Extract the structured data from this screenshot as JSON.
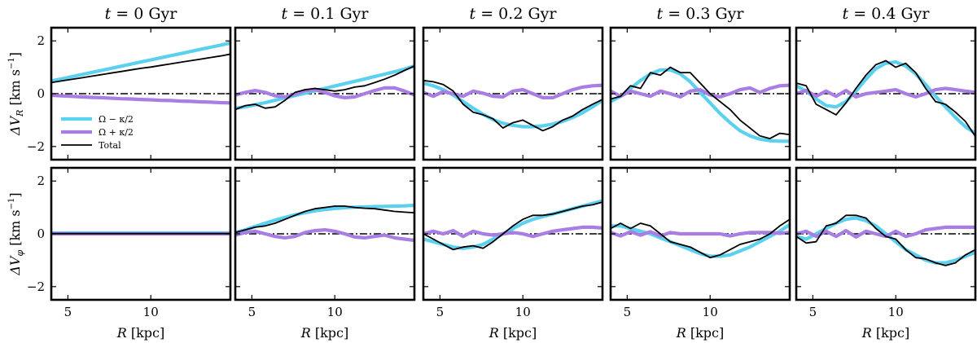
{
  "chart_data": {
    "type": "line",
    "layout": "2 rows x 5 columns, shared axes",
    "columns": [
      "t = 0 Gyr",
      "t = 0.1 Gyr",
      "t = 0.2 Gyr",
      "t = 0.3 Gyr",
      "t = 0.4 Gyr"
    ],
    "title_parts": {
      "prefix": "t",
      "equals": " = ",
      "unit": " Gyr",
      "times": [
        "0",
        "0.1",
        "0.2",
        "0.3",
        "0.4"
      ]
    },
    "xlabel": {
      "var": "R",
      "unit": " [kpc]"
    },
    "ylabels": [
      {
        "main": "ΔV",
        "sub": "R",
        "unit": " [km s",
        "exp": "−1",
        "close": "]"
      },
      {
        "main": "ΔV",
        "sub": "φ",
        "unit": " [km s",
        "exp": "−1",
        "close": "]"
      }
    ],
    "xlim": [
      4,
      14.8
    ],
    "ylim": [
      -2.5,
      2.5
    ],
    "xticks": [
      5,
      10
    ],
    "xtick_labels": [
      "5",
      "10"
    ],
    "yticks": [
      -2,
      0,
      2
    ],
    "ytick_labels": [
      "−2",
      "0",
      "2"
    ],
    "legend": {
      "location": "lower-left of first panel",
      "entries": [
        {
          "label": "Ω − κ/2",
          "color": "#5cd0ef"
        },
        {
          "label": "Ω + κ/2",
          "color": "#a87de4"
        },
        {
          "label": "Total",
          "color": "#000000"
        }
      ]
    },
    "series_colors": {
      "omega_minus": "#5cd0ef",
      "omega_plus": "#a87de4",
      "total": "#000000"
    },
    "x": [
      4.0,
      4.6,
      5.2,
      5.8,
      6.4,
      7.0,
      7.6,
      8.2,
      8.8,
      9.4,
      10.0,
      10.6,
      11.2,
      11.8,
      12.4,
      13.0,
      13.6,
      14.2,
      14.8
    ],
    "panels": [
      {
        "row": 0,
        "col": 0,
        "omega_minus": [
          0.48,
          0.56,
          0.64,
          0.72,
          0.8,
          0.88,
          0.96,
          1.04,
          1.12,
          1.2,
          1.28,
          1.36,
          1.44,
          1.52,
          1.6,
          1.68,
          1.76,
          1.84,
          1.92
        ],
        "omega_plus": [
          -0.06,
          -0.08,
          -0.1,
          -0.12,
          -0.14,
          -0.15,
          -0.17,
          -0.19,
          -0.2,
          -0.22,
          -0.23,
          -0.25,
          -0.26,
          -0.28,
          -0.29,
          -0.31,
          -0.32,
          -0.34,
          -0.35
        ],
        "total": [
          0.42,
          0.48,
          0.54,
          0.6,
          0.66,
          0.72,
          0.78,
          0.84,
          0.9,
          0.96,
          1.01,
          1.07,
          1.13,
          1.19,
          1.25,
          1.31,
          1.37,
          1.43,
          1.5
        ]
      },
      {
        "row": 0,
        "col": 1,
        "omega_minus": [
          -0.55,
          -0.5,
          -0.42,
          -0.34,
          -0.25,
          -0.16,
          -0.07,
          0.02,
          0.11,
          0.2,
          0.29,
          0.38,
          0.47,
          0.56,
          0.65,
          0.74,
          0.83,
          0.93,
          1.05
        ],
        "omega_plus": [
          -0.05,
          0.05,
          0.12,
          0.05,
          -0.08,
          -0.12,
          -0.02,
          0.12,
          0.15,
          0.05,
          -0.08,
          -0.15,
          -0.12,
          0.0,
          0.12,
          0.22,
          0.22,
          0.1,
          -0.05
        ],
        "total": [
          -0.6,
          -0.45,
          -0.4,
          -0.55,
          -0.5,
          -0.25,
          0.05,
          0.15,
          0.2,
          0.15,
          0.1,
          0.15,
          0.25,
          0.3,
          0.42,
          0.55,
          0.7,
          0.88,
          1.05
        ]
      },
      {
        "row": 0,
        "col": 2,
        "omega_minus": [
          0.4,
          0.3,
          0.15,
          -0.05,
          -0.3,
          -0.55,
          -0.78,
          -0.98,
          -1.12,
          -1.2,
          -1.25,
          -1.25,
          -1.22,
          -1.15,
          -1.05,
          -0.9,
          -0.72,
          -0.5,
          -0.25
        ],
        "omega_plus": [
          0.05,
          -0.1,
          0.08,
          0.0,
          -0.1,
          0.1,
          0.02,
          -0.1,
          -0.12,
          0.1,
          0.15,
          0.0,
          -0.15,
          -0.15,
          0.0,
          0.15,
          0.25,
          0.3,
          0.32
        ],
        "total": [
          0.5,
          0.45,
          0.35,
          0.1,
          -0.4,
          -0.7,
          -0.8,
          -0.95,
          -1.3,
          -1.1,
          -1.0,
          -1.2,
          -1.4,
          -1.25,
          -1.0,
          -0.85,
          -0.6,
          -0.4,
          -0.22
        ]
      },
      {
        "row": 0,
        "col": 3,
        "omega_minus": [
          -0.3,
          -0.1,
          0.2,
          0.5,
          0.75,
          0.9,
          0.9,
          0.75,
          0.45,
          0.05,
          -0.35,
          -0.75,
          -1.1,
          -1.4,
          -1.6,
          -1.72,
          -1.78,
          -1.8,
          -1.8
        ],
        "omega_plus": [
          0.1,
          -0.1,
          0.1,
          0.0,
          -0.1,
          0.1,
          0.0,
          -0.12,
          0.1,
          0.15,
          -0.05,
          -0.12,
          0.0,
          0.15,
          0.22,
          0.05,
          0.2,
          0.3,
          0.32
        ],
        "total": [
          -0.2,
          -0.1,
          0.3,
          0.2,
          0.8,
          0.7,
          1.0,
          0.8,
          0.8,
          0.4,
          0.0,
          -0.3,
          -0.6,
          -1.0,
          -1.3,
          -1.6,
          -1.7,
          -1.5,
          -1.55
        ]
      },
      {
        "row": 0,
        "col": 4,
        "omega_minus": [
          0.3,
          0.1,
          -0.2,
          -0.45,
          -0.5,
          -0.3,
          0.1,
          0.55,
          0.95,
          1.15,
          1.2,
          1.05,
          0.75,
          0.35,
          -0.1,
          -0.5,
          -0.9,
          -1.25,
          -1.5
        ],
        "omega_plus": [
          0.0,
          0.12,
          -0.1,
          0.1,
          -0.1,
          0.12,
          -0.12,
          0.0,
          0.05,
          0.1,
          0.15,
          0.0,
          -0.12,
          0.0,
          0.15,
          0.2,
          0.15,
          0.1,
          0.05
        ],
        "total": [
          0.4,
          0.3,
          -0.4,
          -0.6,
          -0.8,
          -0.35,
          0.2,
          0.7,
          1.1,
          1.25,
          1.0,
          1.15,
          0.8,
          0.2,
          -0.3,
          -0.4,
          -0.7,
          -1.05,
          -1.62
        ]
      },
      {
        "row": 1,
        "col": 0,
        "omega_minus": [
          0.03,
          0.03,
          0.03,
          0.03,
          0.03,
          0.03,
          0.03,
          0.03,
          0.03,
          0.03,
          0.03,
          0.03,
          0.03,
          0.03,
          0.03,
          0.03,
          0.03,
          0.03,
          0.03
        ],
        "omega_plus": [
          0.0,
          0.0,
          0.0,
          0.0,
          0.0,
          0.0,
          0.0,
          0.0,
          0.0,
          0.0,
          0.0,
          0.0,
          0.0,
          0.0,
          0.0,
          0.0,
          0.0,
          0.0,
          0.0
        ],
        "total": [
          0.01,
          0.01,
          0.01,
          0.01,
          0.01,
          0.01,
          0.01,
          0.01,
          0.01,
          0.01,
          0.01,
          0.01,
          0.01,
          0.01,
          0.01,
          0.01,
          0.01,
          0.01,
          0.01
        ]
      },
      {
        "row": 1,
        "col": 1,
        "omega_minus": [
          0.05,
          0.15,
          0.28,
          0.4,
          0.52,
          0.62,
          0.72,
          0.8,
          0.87,
          0.92,
          0.96,
          0.99,
          1.01,
          1.02,
          1.03,
          1.04,
          1.05,
          1.06,
          1.08
        ],
        "omega_plus": [
          -0.05,
          0.05,
          0.1,
          0.0,
          -0.1,
          -0.15,
          -0.1,
          0.05,
          0.12,
          0.15,
          0.1,
          0.0,
          -0.12,
          -0.15,
          -0.1,
          -0.05,
          -0.15,
          -0.2,
          -0.25
        ],
        "total": [
          0.05,
          0.15,
          0.25,
          0.3,
          0.4,
          0.55,
          0.7,
          0.85,
          0.95,
          1.0,
          1.05,
          1.05,
          1.0,
          0.97,
          0.95,
          0.9,
          0.85,
          0.82,
          0.8
        ]
      },
      {
        "row": 1,
        "col": 2,
        "omega_minus": [
          -0.2,
          -0.3,
          -0.4,
          -0.5,
          -0.55,
          -0.5,
          -0.4,
          -0.2,
          0.0,
          0.2,
          0.4,
          0.55,
          0.65,
          0.75,
          0.85,
          0.95,
          1.05,
          1.15,
          1.25
        ],
        "omega_plus": [
          0.0,
          0.1,
          0.0,
          0.12,
          -0.1,
          0.1,
          0.0,
          -0.05,
          0.0,
          0.05,
          0.0,
          -0.1,
          0.0,
          0.1,
          0.15,
          0.2,
          0.25,
          0.25,
          0.22
        ],
        "total": [
          0.0,
          -0.2,
          -0.4,
          -0.6,
          -0.5,
          -0.45,
          -0.55,
          -0.3,
          0.0,
          0.3,
          0.55,
          0.7,
          0.7,
          0.75,
          0.85,
          0.95,
          1.05,
          1.1,
          1.2
        ]
      },
      {
        "row": 1,
        "col": 3,
        "omega_minus": [
          0.3,
          0.3,
          0.2,
          0.1,
          0.0,
          -0.15,
          -0.3,
          -0.45,
          -0.6,
          -0.75,
          -0.85,
          -0.85,
          -0.8,
          -0.65,
          -0.5,
          -0.3,
          -0.1,
          0.1,
          0.35
        ],
        "omega_plus": [
          0.05,
          -0.08,
          0.08,
          -0.05,
          0.08,
          -0.08,
          0.05,
          0.0,
          0.0,
          0.0,
          0.0,
          0.0,
          -0.08,
          0.0,
          0.05,
          0.05,
          0.05,
          0.02,
          0.05
        ],
        "total": [
          0.2,
          0.4,
          0.2,
          0.4,
          0.3,
          0.0,
          -0.3,
          -0.4,
          -0.5,
          -0.7,
          -0.9,
          -0.8,
          -0.6,
          -0.4,
          -0.3,
          -0.2,
          0.0,
          0.3,
          0.55
        ]
      },
      {
        "row": 1,
        "col": 4,
        "omega_minus": [
          -0.1,
          -0.2,
          0.0,
          0.2,
          0.4,
          0.55,
          0.6,
          0.5,
          0.3,
          0.0,
          -0.3,
          -0.6,
          -0.8,
          -1.0,
          -1.1,
          -1.1,
          -1.0,
          -0.85,
          -0.7
        ],
        "omega_plus": [
          0.0,
          0.1,
          -0.1,
          0.1,
          -0.1,
          0.12,
          -0.12,
          0.1,
          0.0,
          -0.1,
          0.1,
          -0.1,
          0.0,
          0.15,
          0.2,
          0.25,
          0.25,
          0.25,
          0.25
        ],
        "total": [
          -0.1,
          -0.35,
          -0.3,
          0.3,
          0.4,
          0.7,
          0.7,
          0.6,
          0.2,
          -0.1,
          -0.2,
          -0.6,
          -0.9,
          -0.95,
          -1.1,
          -1.2,
          -1.1,
          -0.8,
          -0.6
        ]
      }
    ]
  }
}
